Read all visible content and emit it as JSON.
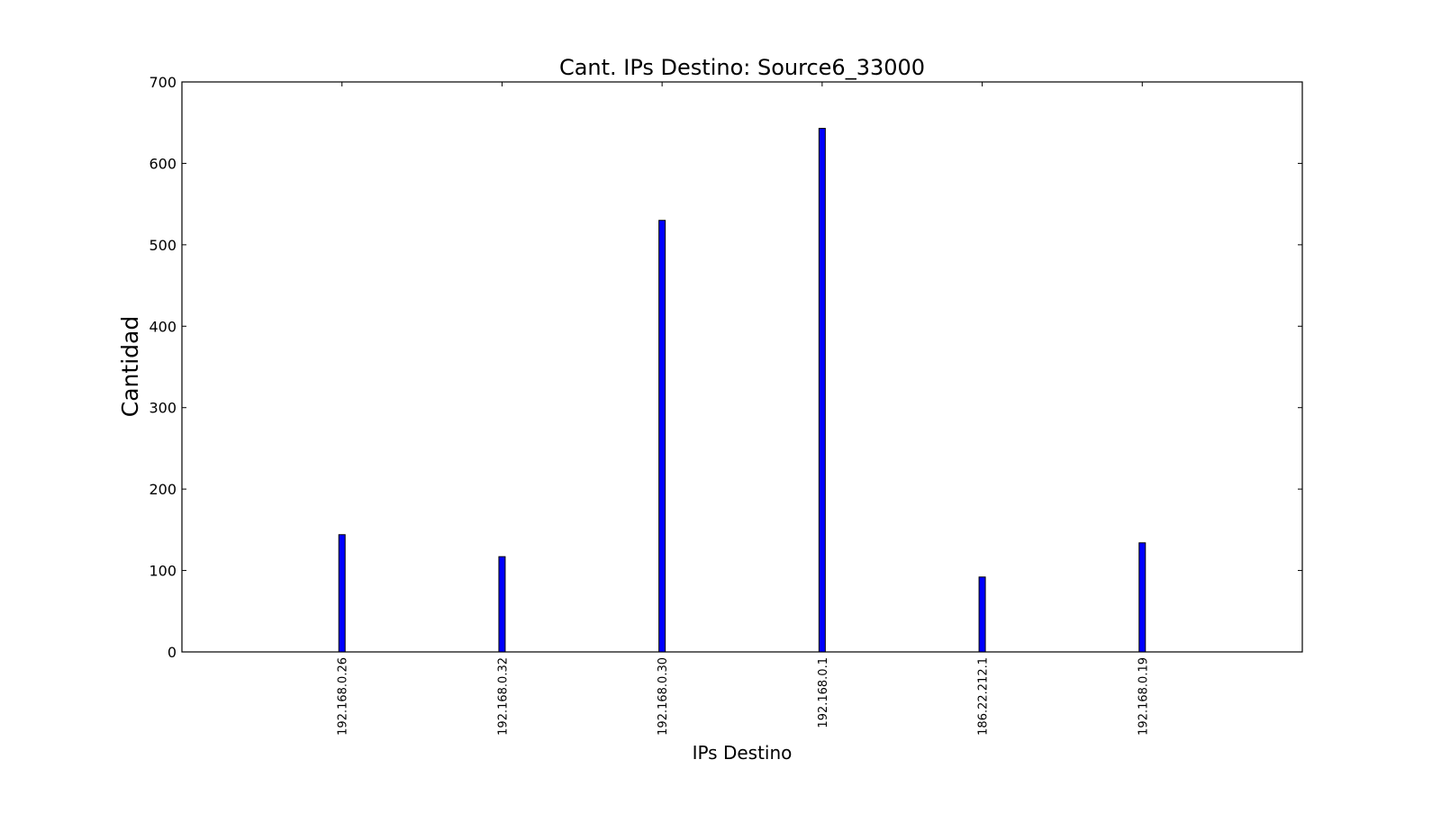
{
  "chart_data": {
    "type": "bar",
    "title": "Cant. IPs Destino: Source6_33000",
    "xlabel": "IPs Destino",
    "ylabel": "Cantidad",
    "categories": [
      "192.168.0.26",
      "192.168.0.32",
      "192.168.0.30",
      "192.168.0.1",
      "186.22.212.1",
      "192.168.0.19"
    ],
    "values": [
      144,
      117,
      530,
      643,
      92,
      134
    ],
    "ylim": [
      0,
      700
    ],
    "yticks": [
      0,
      100,
      200,
      300,
      400,
      500,
      600,
      700
    ],
    "bar_color": "#0000ff",
    "bar_edge_color": "#000000",
    "grid": false,
    "legend": "none"
  }
}
